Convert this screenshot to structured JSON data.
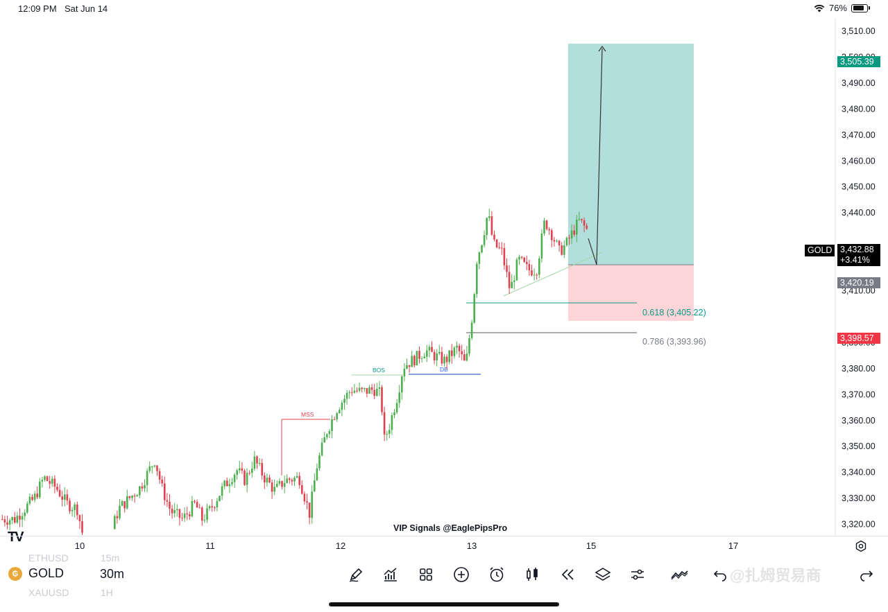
{
  "status_bar": {
    "time": "12:09 PM",
    "date": "Sat Jun 14",
    "battery": "76%"
  },
  "chart": {
    "symbol": "GOLD",
    "interval": "30m",
    "watermark": "VIP Signals @EaglePipsPro",
    "current_price": "3,432.88",
    "change": "+3.41%",
    "target_price": "3,505.39",
    "entry_price": "3,420.19",
    "stop_price": "3,398.57",
    "fib_618": "0.618 (3,405.22)",
    "fib_786": "0.786 (3,393.96)",
    "annotations": {
      "mss": "MSS",
      "bos": "BOS",
      "db": "DB"
    },
    "price_axis": [
      "3,510.00",
      "3,500.00",
      "3,490.00",
      "3,480.00",
      "3,470.00",
      "3,460.00",
      "3,450.00",
      "3,440.00",
      "3,410.00",
      "3,390.00",
      "3,380.00",
      "3,370.00",
      "3,360.00",
      "3,350.00",
      "3,340.00",
      "3,330.00",
      "3,320.00"
    ],
    "time_axis": [
      "10",
      "11",
      "12",
      "13",
      "15",
      "17"
    ],
    "colors": {
      "up": "#4caf50",
      "down": "#e0414e",
      "profit_zone": "#b2dfdb",
      "loss_zone": "#fdd5d9",
      "target": "#089981",
      "stop": "#f23645"
    }
  },
  "bottom_bar": {
    "ghost_top_symbol": "ETHUSD",
    "ghost_top_interval": "15m",
    "ghost_bottom_symbol": "XAUUSD",
    "ghost_bottom_interval": "1H",
    "symbol_icon_letter": "₲",
    "tools": [
      "pen-icon",
      "indicators-icon",
      "grid-icon",
      "add-icon",
      "alarm-icon",
      "candles-icon",
      "replay-icon",
      "layers-icon",
      "settings-sliders-icon",
      "trend-icon",
      "undo-icon",
      "redo-icon"
    ],
    "overlay_text": "@扎姆贸易商"
  },
  "tv_logo": "TV"
}
